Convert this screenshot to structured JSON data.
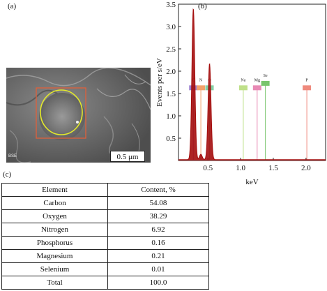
{
  "labels": {
    "a": "(a)",
    "b": "(b)",
    "c": "(c)"
  },
  "sem": {
    "detector": "BSE",
    "scale_bar": "0.5 μm"
  },
  "chart_data": {
    "type": "line",
    "xlabel": "keV",
    "ylabel": "Events per s/eV",
    "xlim": [
      0.05,
      2.3
    ],
    "ylim": [
      0,
      3.5
    ],
    "xticks": [
      "0.5",
      "1.0",
      "1.5",
      "2.0"
    ],
    "yticks": [
      "0.5",
      "1.0",
      "1.5",
      "2.0",
      "2.5",
      "3.0",
      "3.5"
    ],
    "peaks": [
      {
        "x": 0.277,
        "y": 3.38,
        "w": 0.022
      },
      {
        "x": 0.392,
        "y": 0.12,
        "w": 0.02
      },
      {
        "x": 0.525,
        "y": 2.15,
        "w": 0.022
      }
    ],
    "element_lines": [
      {
        "label": "C",
        "x": 0.277,
        "color": "#9b7fd0",
        "height": 1.62
      },
      {
        "label": "N",
        "x": 0.392,
        "color": "#f3a26b",
        "height": 1.62
      },
      {
        "label": "O",
        "x": 0.525,
        "color": "#86d0a6",
        "height": 1.62
      },
      {
        "label": "Na",
        "x": 1.041,
        "color": "#bfe08a",
        "height": 1.62
      },
      {
        "label": "Mg",
        "x": 1.253,
        "color": "#e88ab5",
        "height": 1.62
      },
      {
        "label": "Se",
        "x": 1.379,
        "color": "#79c56d",
        "height": 1.72
      },
      {
        "label": "P",
        "x": 2.013,
        "color": "#ef8a7e",
        "height": 1.62
      }
    ],
    "colors": {
      "spectrum": "#a40d0d",
      "axis": "#222222"
    }
  },
  "table": {
    "headers": [
      "Element",
      "Content, %"
    ],
    "rows": [
      [
        "Carbon",
        "54.08"
      ],
      [
        "Oxygen",
        "38.29"
      ],
      [
        "Nitrogen",
        "6.92"
      ],
      [
        "Phosphorus",
        "0.16"
      ],
      [
        "Magnesium",
        "0.21"
      ],
      [
        "Selenium",
        "0.01"
      ],
      [
        "Total",
        "100.0"
      ]
    ]
  }
}
